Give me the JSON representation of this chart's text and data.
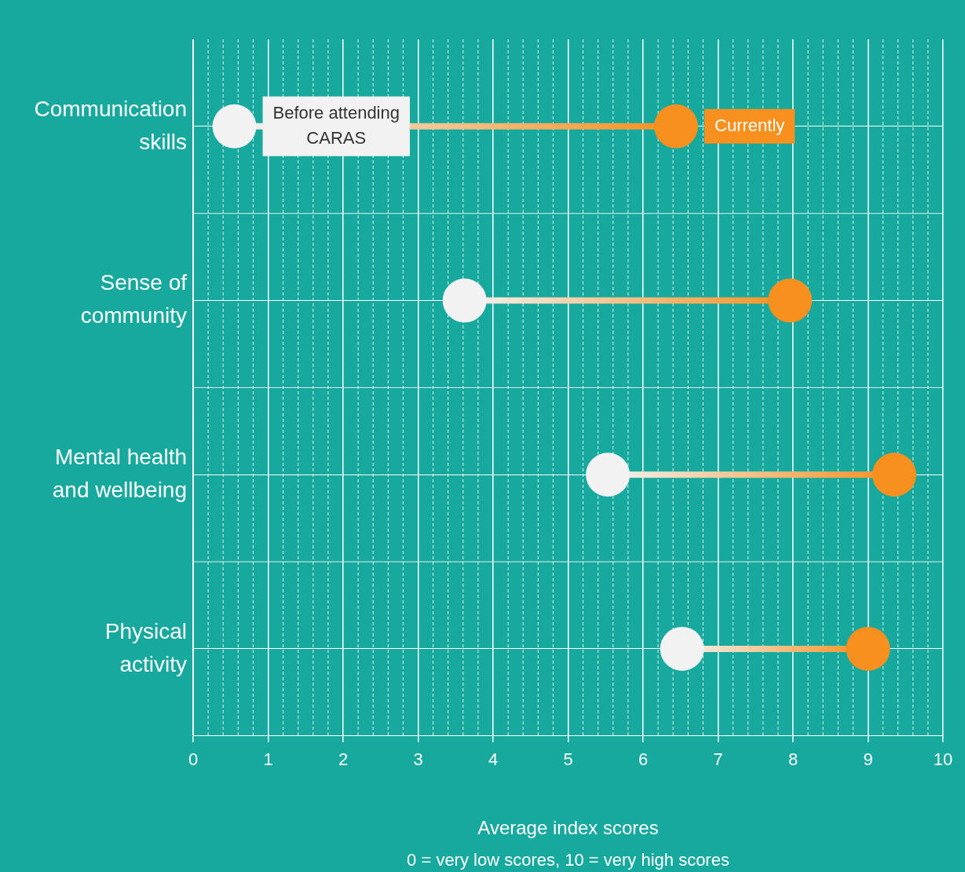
{
  "chart_data": {
    "type": "scatter",
    "orientation": "horizontal",
    "categories": [
      "Communication skills",
      "Sense of community",
      "Mental health and wellbeing",
      "Physical activity"
    ],
    "series": [
      {
        "name": "Before attending CARAS",
        "color": "#f2f2f2",
        "values": [
          0.55,
          3.62,
          5.53,
          6.52
        ]
      },
      {
        "name": "Currently",
        "color": "#f7901e",
        "values": [
          6.44,
          7.96,
          9.35,
          9.0
        ]
      }
    ],
    "xlim": [
      0,
      10
    ],
    "xticks": [
      0,
      1,
      2,
      3,
      4,
      5,
      6,
      7,
      8,
      9,
      10
    ],
    "xlabel": "Average index scores",
    "annotations": [
      "0 = very low scores, 10 = very high scores"
    ],
    "grid": true,
    "legend": false,
    "marker": "circle"
  }
}
